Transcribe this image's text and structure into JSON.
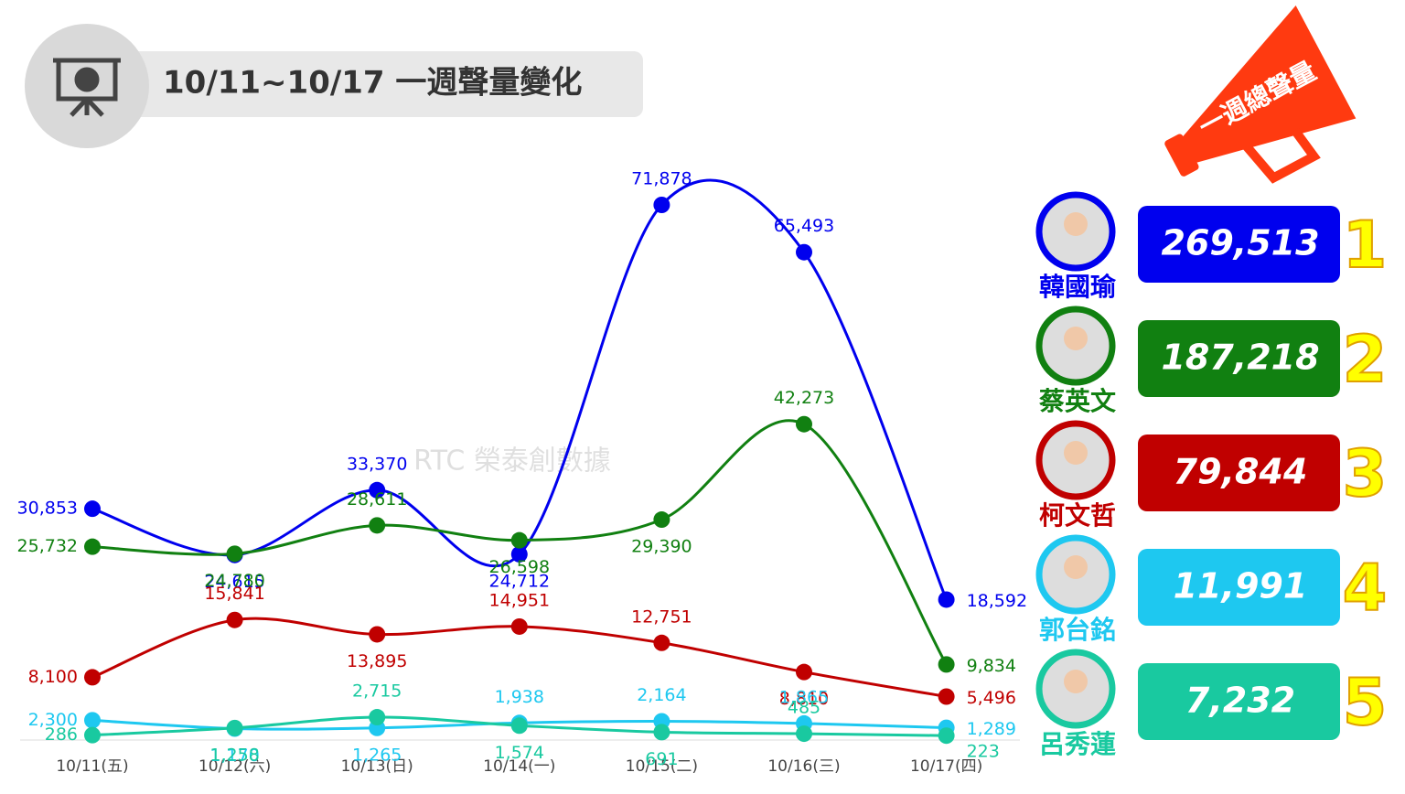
{
  "chart_data": {
    "type": "line",
    "title": "10/11~10/17 一週聲量變化",
    "watermark": "RTC 榮泰創數據",
    "ranking_title": "一週總聲量",
    "categories": [
      "10/11(五)",
      "10/12(六)",
      "10/13(日)",
      "10/14(一)",
      "10/15(二)",
      "10/16(三)",
      "10/17(四)"
    ],
    "series": [
      {
        "name": "韓國瑜",
        "color": "#0000ee",
        "values": [
          30853,
          24615,
          33370,
          24712,
          71878,
          65493,
          18592
        ],
        "value_labels": [
          "30,853",
          "24,615",
          "33,370",
          "24,712",
          "71,878",
          "65,493",
          "18,592"
        ],
        "total": 269513,
        "total_label": "269,513",
        "rank": 1
      },
      {
        "name": "蔡英文",
        "color": "#118011",
        "values": [
          25732,
          24780,
          28611,
          26598,
          29390,
          42273,
          9834
        ],
        "value_labels": [
          "25,732",
          "24,780",
          "28,611",
          "26,598",
          "29,390",
          "42,273",
          "9,834"
        ],
        "total": 187218,
        "total_label": "187,218",
        "rank": 2
      },
      {
        "name": "柯文哲",
        "color": "#c00000",
        "values": [
          8100,
          15841,
          13895,
          14951,
          12751,
          8810,
          5496
        ],
        "value_labels": [
          "8,100",
          "15,841",
          "13,895",
          "14,951",
          "12,751",
          "8,810",
          "5,496"
        ],
        "total": 79844,
        "total_label": "79,844",
        "rank": 3
      },
      {
        "name": "郭台銘",
        "color": "#1ec8f0",
        "values": [
          2300,
          1170,
          1265,
          1938,
          2164,
          1865,
          1289
        ],
        "value_labels": [
          "2,300",
          "1,170",
          "1,265",
          "1,938",
          "2,164",
          "1,865",
          "1,289"
        ],
        "total": 11991,
        "total_label": "11,991",
        "rank": 4
      },
      {
        "name": "呂秀蓮",
        "color": "#19c9a0",
        "values": [
          286,
          1258,
          2715,
          1574,
          691,
          485,
          223
        ],
        "value_labels": [
          "286",
          "1,258",
          "2,715",
          "1,574",
          "691",
          "485",
          "223"
        ],
        "total": 7232,
        "total_label": "7,232",
        "rank": 5
      }
    ]
  }
}
